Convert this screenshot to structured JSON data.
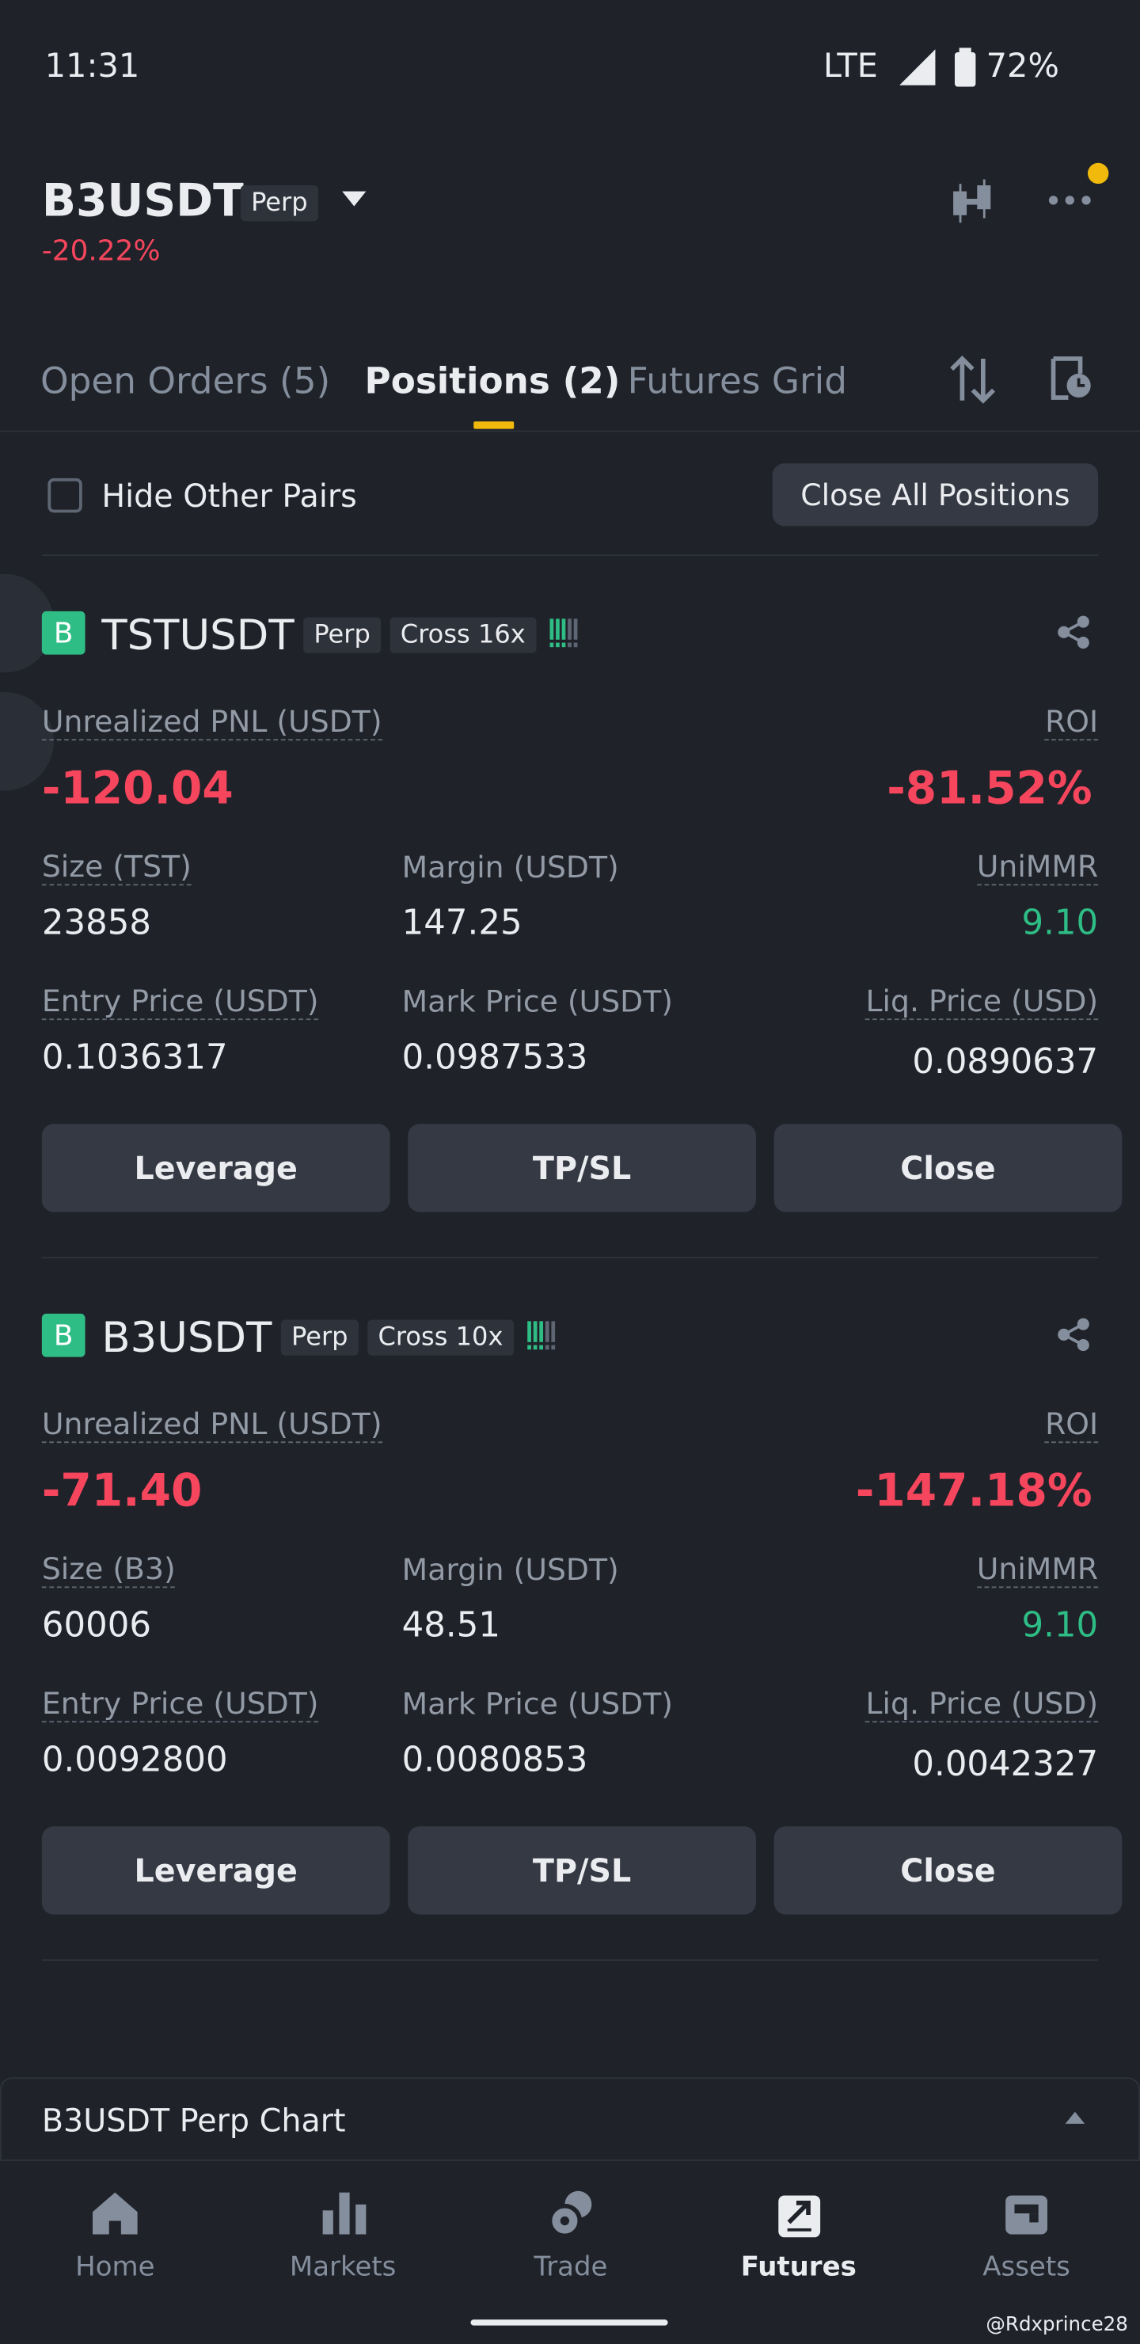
{
  "status": {
    "time": "11:31",
    "network": "LTE",
    "battery": "72%"
  },
  "header": {
    "symbol": "B3USDT",
    "badge": "Perp",
    "change": "-20.22%"
  },
  "tabs": {
    "items": [
      "Open Orders (5)",
      "Positions (2)",
      "Futures Grid"
    ],
    "active": 1
  },
  "filter": {
    "checkbox_label": "Hide Other Pairs",
    "button": "Close All Positions"
  },
  "positions": [
    {
      "side": "B",
      "symbol": "TSTUSDT",
      "type": "Perp",
      "margin_mode": "Cross 16x",
      "pnl_label": "Unrealized PNL (USDT)",
      "pnl": "-120.04",
      "roi_label": "ROI",
      "roi": "-81.52%",
      "fields": [
        {
          "label": "Size (TST)",
          "value": "23858"
        },
        {
          "label": "Margin (USDT)",
          "value": "147.25"
        },
        {
          "label": "UniMMR",
          "value": "9.10"
        },
        {
          "label": "Entry Price (USDT)",
          "value": "0.1036317"
        },
        {
          "label": "Mark Price (USDT)",
          "value": "0.0987533"
        },
        {
          "label": "Liq. Price (USD)",
          "value": "0.0890637"
        }
      ],
      "buttons": [
        "Leverage",
        "TP/SL",
        "Close"
      ]
    },
    {
      "side": "B",
      "symbol": "B3USDT",
      "type": "Perp",
      "margin_mode": "Cross 10x",
      "pnl_label": "Unrealized PNL (USDT)",
      "pnl": "-71.40",
      "roi_label": "ROI",
      "roi": "-147.18%",
      "fields": [
        {
          "label": "Size (B3)",
          "value": "60006"
        },
        {
          "label": "Margin (USDT)",
          "value": "48.51"
        },
        {
          "label": "UniMMR",
          "value": "9.10"
        },
        {
          "label": "Entry Price (USDT)",
          "value": "0.0092800"
        },
        {
          "label": "Mark Price (USDT)",
          "value": "0.0080853"
        },
        {
          "label": "Liq. Price (USD)",
          "value": "0.0042327"
        }
      ],
      "buttons": [
        "Leverage",
        "TP/SL",
        "Close"
      ]
    }
  ],
  "chart_bar": "B3USDT Perp Chart",
  "nav": {
    "items": [
      "Home",
      "Markets",
      "Trade",
      "Futures",
      "Assets"
    ],
    "active": 3
  },
  "watermark": "@Rdxprince28"
}
